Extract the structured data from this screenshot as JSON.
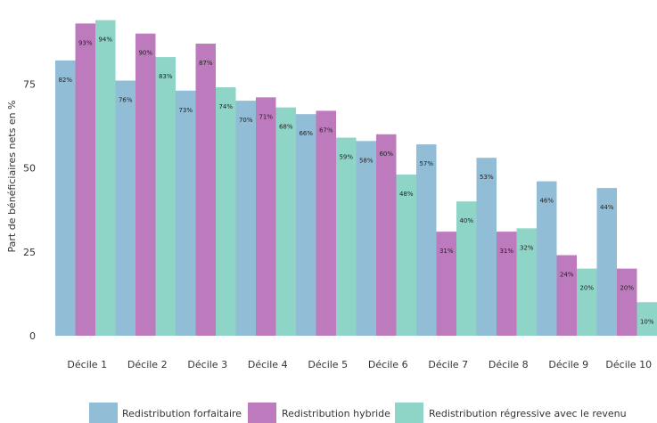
{
  "chart_data": {
    "type": "bar",
    "title": "",
    "xlabel": "",
    "ylabel": "Part de bénéficiaires nets en %",
    "ylim": [
      0,
      100
    ],
    "yticks": [
      0,
      25,
      50,
      75
    ],
    "grid": false,
    "legend_position": "bottom",
    "categories": [
      "Décile 1",
      "Décile 2",
      "Décile 3",
      "Décile 4",
      "Décile 5",
      "Décile 6",
      "Décile 7",
      "Décile 8",
      "Décile 9",
      "Décile 10"
    ],
    "series": [
      {
        "name": "Redistribution forfaitaire",
        "color": "#92bdd6",
        "values": [
          82,
          76,
          73,
          70,
          66,
          58,
          57,
          53,
          46,
          44
        ],
        "labels": [
          "82%",
          "76%",
          "73%",
          "70%",
          "66%",
          "58%",
          "57%",
          "53%",
          "46%",
          "44%"
        ]
      },
      {
        "name": "Redistribution hybride",
        "color": "#bd7bbd",
        "values": [
          93,
          90,
          87,
          71,
          67,
          60,
          31,
          31,
          24,
          20
        ],
        "labels": [
          "93%",
          "90%",
          "87%",
          "71%",
          "67%",
          "60%",
          "31%",
          "31%",
          "24%",
          "20%"
        ]
      },
      {
        "name": "Redistribution régressive avec le revenu",
        "color": "#8ed4c7",
        "values": [
          94,
          83,
          74,
          68,
          59,
          48,
          40,
          32,
          20,
          10
        ],
        "labels": [
          "94%",
          "83%",
          "74%",
          "68%",
          "59%",
          "48%",
          "40%",
          "32%",
          "20%",
          "10%"
        ]
      }
    ]
  }
}
